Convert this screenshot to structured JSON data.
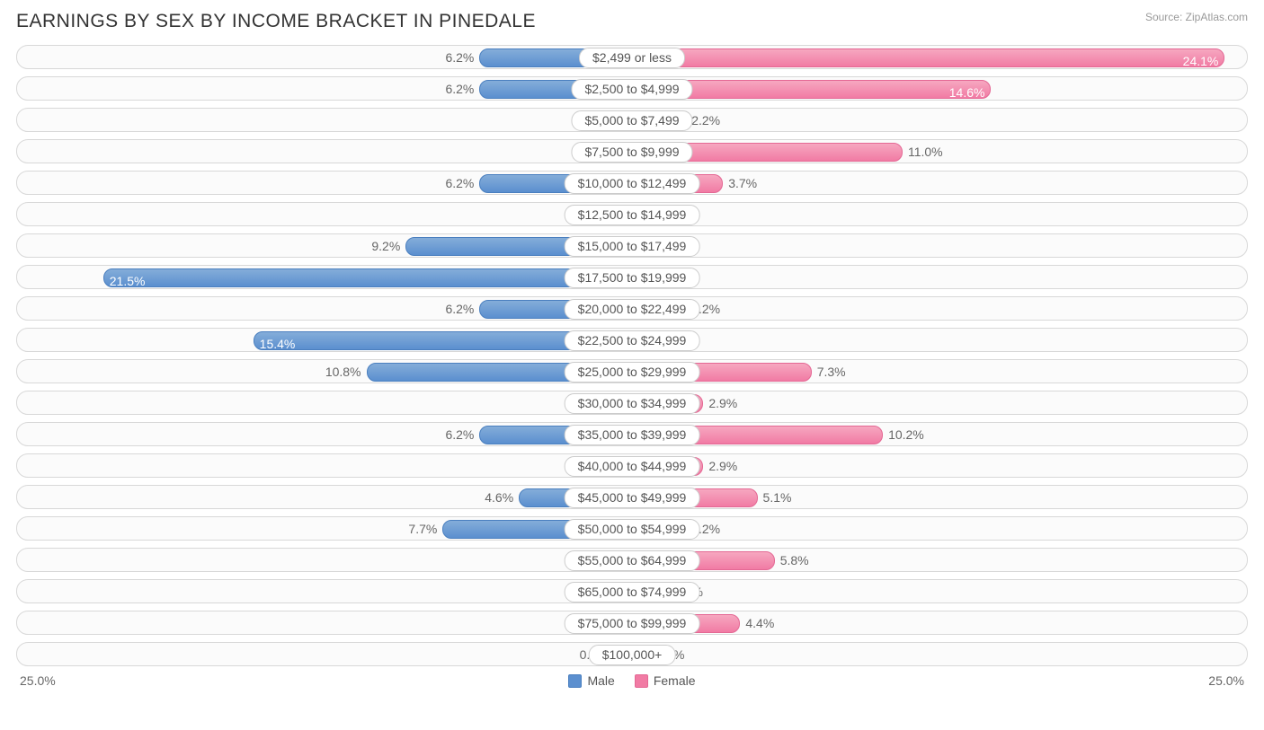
{
  "title": "EARNINGS BY SEX BY INCOME BRACKET IN PINEDALE",
  "source": "Source: ZipAtlas.com",
  "axis_max_label": "25.0%",
  "axis_max_value": 25.0,
  "stub_pct": 3.0,
  "legend": {
    "male": "Male",
    "female": "Female"
  },
  "colors": {
    "male_bar": "#5b8fcf",
    "female_bar": "#f17ba4",
    "track_border": "#d8d8d8",
    "track_bg": "#fbfbfb",
    "text": "#666666",
    "title": "#333333"
  },
  "inside_label_threshold": 12.0,
  "rows": [
    {
      "label": "$2,499 or less",
      "male": 6.2,
      "female": 24.1
    },
    {
      "label": "$2,500 to $4,999",
      "male": 6.2,
      "female": 14.6
    },
    {
      "label": "$5,000 to $7,499",
      "male": 0.0,
      "female": 2.2
    },
    {
      "label": "$7,500 to $9,999",
      "male": 0.0,
      "female": 11.0
    },
    {
      "label": "$10,000 to $12,499",
      "male": 6.2,
      "female": 3.7
    },
    {
      "label": "$12,500 to $14,999",
      "male": 0.0,
      "female": 0.0
    },
    {
      "label": "$15,000 to $17,499",
      "male": 9.2,
      "female": 0.0
    },
    {
      "label": "$17,500 to $19,999",
      "male": 21.5,
      "female": 0.0
    },
    {
      "label": "$20,000 to $22,499",
      "male": 6.2,
      "female": 2.2
    },
    {
      "label": "$22,500 to $24,999",
      "male": 15.4,
      "female": 0.0
    },
    {
      "label": "$25,000 to $29,999",
      "male": 10.8,
      "female": 7.3
    },
    {
      "label": "$30,000 to $34,999",
      "male": 0.0,
      "female": 2.9
    },
    {
      "label": "$35,000 to $39,999",
      "male": 6.2,
      "female": 10.2
    },
    {
      "label": "$40,000 to $44,999",
      "male": 0.0,
      "female": 2.9
    },
    {
      "label": "$45,000 to $49,999",
      "male": 4.6,
      "female": 5.1
    },
    {
      "label": "$50,000 to $54,999",
      "male": 7.7,
      "female": 2.2
    },
    {
      "label": "$55,000 to $64,999",
      "male": 0.0,
      "female": 5.8
    },
    {
      "label": "$65,000 to $74,999",
      "male": 0.0,
      "female": 1.5
    },
    {
      "label": "$75,000 to $99,999",
      "male": 0.0,
      "female": 4.4
    },
    {
      "label": "$100,000+",
      "male": 0.0,
      "female": 0.0
    }
  ]
}
